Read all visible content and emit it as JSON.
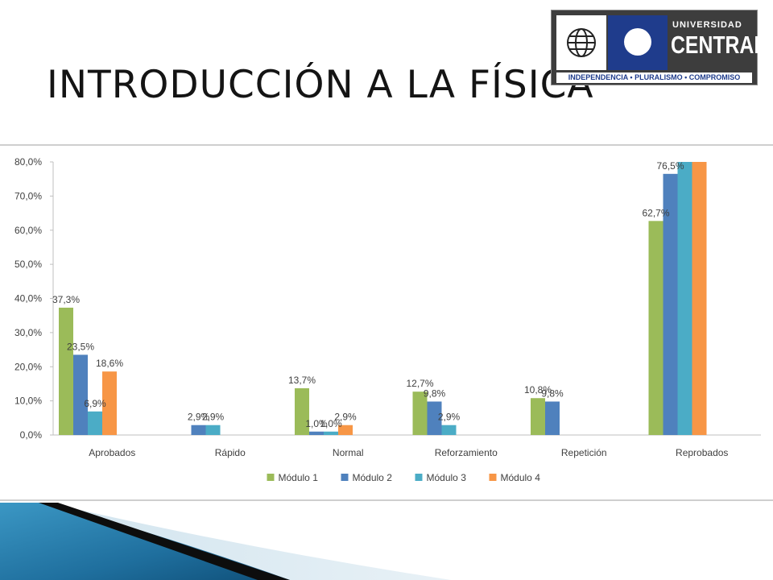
{
  "slide": {
    "title": "INTRODUCCIÓN A LA FÍSICA"
  },
  "logo": {
    "line1": "UNIVERSIDAD",
    "line2": "CENTRAL",
    "tagline": "INDEPENDENCIA • PLURALISMO • COMPROMISO"
  },
  "chart_data": {
    "type": "bar",
    "title": "",
    "xlabel": "",
    "ylabel": "",
    "ylim": [
      0,
      80
    ],
    "yticks": [
      "0,0%",
      "10,0%",
      "20,0%",
      "30,0%",
      "40,0%",
      "50,0%",
      "60,0%",
      "70,0%",
      "80,0%"
    ],
    "grid": false,
    "legend_position": "bottom",
    "categories": [
      "Aprobados",
      "Rápido",
      "Normal",
      "Reforzamiento",
      "Repetición",
      "Reprobados"
    ],
    "series": [
      {
        "name": "Módulo 1",
        "color": "#9bbb59",
        "values": [
          37.3,
          null,
          13.7,
          12.7,
          10.8,
          62.7
        ],
        "labels": [
          "37,3%",
          "",
          "13,7%",
          "12,7%",
          "10,8%",
          "62,7%"
        ]
      },
      {
        "name": "Módulo 2",
        "color": "#4f81bd",
        "values": [
          23.5,
          2.9,
          1.0,
          9.8,
          9.8,
          76.5
        ],
        "labels": [
          "23,5%",
          "2,9%",
          "1,0%",
          "9,8%",
          "9,8%",
          "76,5%"
        ]
      },
      {
        "name": "Módulo 3",
        "color": "#4bacc6",
        "values": [
          6.9,
          2.9,
          1.0,
          2.9,
          null,
          80.0
        ],
        "labels": [
          "6,9%",
          "2,9%",
          "1,0%",
          "2,9%",
          "",
          ""
        ]
      },
      {
        "name": "Módulo 4",
        "color": "#f79646",
        "values": [
          18.6,
          null,
          2.9,
          null,
          null,
          80.0
        ],
        "labels": [
          "18,6%",
          "",
          "2,9%",
          "",
          "",
          ""
        ]
      }
    ]
  }
}
